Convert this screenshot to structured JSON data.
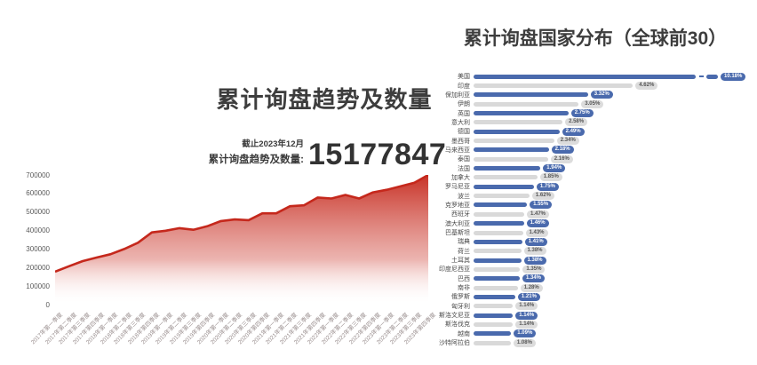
{
  "left_chart": {
    "title": "累计询盘趋势及数量",
    "stat": {
      "as_of": "截止2023年12月",
      "label": "累计询盘趋势及数量:",
      "value": "15177847"
    }
  },
  "right_chart": {
    "title": "累计询盘国家分布（全球前30）"
  },
  "colors": {
    "accent_red": "#c5281c",
    "bar_blue": "#4a6aad",
    "bar_gray": "#d9d9d9",
    "title_color": "#3d3d3d"
  },
  "chart_data": [
    {
      "type": "area",
      "title": "累计询盘趋势及数量",
      "x": [
        "2017年第一季度",
        "2017年第二季度",
        "2017年第三季度",
        "2017年第四季度",
        "2018年第一季度",
        "2018年第二季度",
        "2018年第三季度",
        "2018年第四季度",
        "2019年第一季度",
        "2019年第二季度",
        "2019年第三季度",
        "2019年第四季度",
        "2020年第一季度",
        "2020年第二季度",
        "2020年第三季度",
        "2020年第四季度",
        "2021年第一季度",
        "2021年第二季度",
        "2021年第三季度",
        "2021年第四季度",
        "2022年第一季度",
        "2022年第二季度",
        "2022年第三季度",
        "2022年第四季度",
        "2023年第一季度",
        "2023年第二季度",
        "2023年第三季度",
        "2023年第四季度"
      ],
      "values": [
        178000,
        207000,
        235000,
        254000,
        272000,
        300000,
        334000,
        390000,
        399000,
        413000,
        404000,
        423000,
        451000,
        460000,
        456000,
        493000,
        493000,
        531000,
        536000,
        578000,
        573000,
        592000,
        573000,
        606000,
        620000,
        639000,
        658000,
        700000
      ],
      "ylim": [
        0,
        700000
      ],
      "yticks": [
        0,
        100000,
        200000,
        300000,
        400000,
        500000,
        600000,
        700000
      ],
      "ytick_labels": [
        "0",
        "100000",
        "200000",
        "300000",
        "400000",
        "500000",
        "600000",
        "700000"
      ],
      "line_color": "#c5281c",
      "fill": "vertical gradient red to white",
      "grid": "off",
      "legend": "none"
    },
    {
      "type": "bar",
      "orientation": "horizontal",
      "title": "累计询盘国家分布（全球前30）",
      "categories": [
        "美国",
        "印度",
        "保加利亚",
        "伊朗",
        "英国",
        "意大利",
        "德国",
        "墨西哥",
        "马来西亚",
        "泰国",
        "法国",
        "加拿大",
        "罗马尼亚",
        "波兰",
        "克罗地亚",
        "西班牙",
        "澳大利亚",
        "巴基斯坦",
        "瑞典",
        "荷兰",
        "土耳其",
        "印度尼西亚",
        "巴西",
        "南非",
        "俄罗斯",
        "匈牙利",
        "斯洛文尼亚",
        "斯洛伐克",
        "越南",
        "沙特阿拉伯"
      ],
      "values": [
        10.18,
        4.62,
        3.32,
        3.05,
        2.75,
        2.58,
        2.49,
        2.34,
        2.18,
        2.16,
        1.94,
        1.85,
        1.75,
        1.62,
        1.55,
        1.47,
        1.46,
        1.43,
        1.41,
        1.38,
        1.38,
        1.35,
        1.34,
        1.28,
        1.21,
        1.14,
        1.14,
        1.14,
        1.09,
        1.08
      ],
      "value_labels": [
        "10.18%",
        "4.62%",
        "3.32%",
        "3.05%",
        "2.75%",
        "2.58%",
        "2.49%",
        "2.34%",
        "2.18%",
        "2.16%",
        "1.94%",
        "1.85%",
        "1.75%",
        "1.62%",
        "1.55%",
        "1.47%",
        "1.46%",
        "1.43%",
        "1.41%",
        "1.38%",
        "1.38%",
        "1.35%",
        "1.34%",
        "1.28%",
        "1.21%",
        "1.14%",
        "1.14%",
        "1.14%",
        "1.09%",
        "1.08%"
      ],
      "bar_color_pattern": "alternating blue/gray starting blue",
      "axis_break_row": 0,
      "legend": "none"
    }
  ]
}
